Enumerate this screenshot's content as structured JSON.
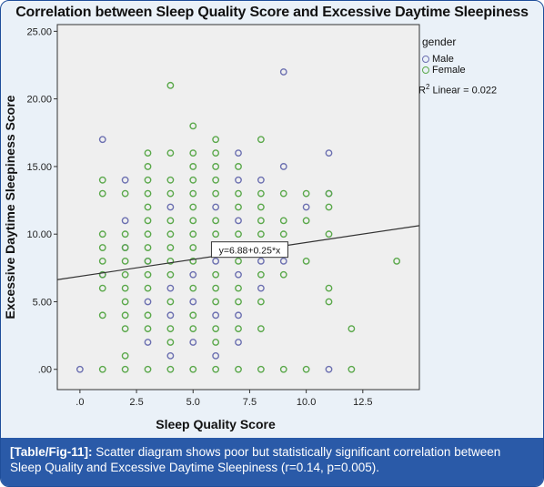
{
  "chart_data": {
    "type": "scatter",
    "title": "Correlation between Sleep Quality Score and Excessive Daytime Sleepiness",
    "xlabel": "Sleep Quality Score",
    "ylabel": "Excessive Daytime Sleepiness Score",
    "xlim": [
      -1,
      15
    ],
    "ylim": [
      -1.5,
      25.5
    ],
    "x_ticks": [
      0,
      2.5,
      5,
      7.5,
      10,
      12.5
    ],
    "x_tick_labels": [
      ".0",
      "2.5",
      "5.0",
      "7.5",
      "10.0",
      "12.5"
    ],
    "y_ticks": [
      0,
      5,
      10,
      15,
      20,
      25
    ],
    "y_tick_labels": [
      ".00",
      "5.00",
      "10.00",
      "15.00",
      "20.00",
      "25.00"
    ],
    "grid": false,
    "legend_position": "top-right",
    "legend_title": "gender",
    "series": [
      {
        "name": "Male",
        "color": "#6b6fb0",
        "points": [
          [
            0,
            0
          ],
          [
            1,
            17
          ],
          [
            1,
            7
          ],
          [
            2,
            14
          ],
          [
            2,
            11
          ],
          [
            2,
            9
          ],
          [
            3,
            2
          ],
          [
            3,
            5
          ],
          [
            3,
            8
          ],
          [
            4,
            1
          ],
          [
            4,
            4
          ],
          [
            4,
            6
          ],
          [
            4,
            12
          ],
          [
            5,
            5
          ],
          [
            5,
            2
          ],
          [
            5,
            7
          ],
          [
            6,
            1
          ],
          [
            6,
            4
          ],
          [
            6,
            8
          ],
          [
            6,
            12
          ],
          [
            7,
            16
          ],
          [
            7,
            14
          ],
          [
            7,
            11
          ],
          [
            7,
            4
          ],
          [
            7,
            2
          ],
          [
            7,
            7
          ],
          [
            8,
            14
          ],
          [
            8,
            6
          ],
          [
            8,
            8
          ],
          [
            9,
            22
          ],
          [
            9,
            15
          ],
          [
            9,
            8
          ],
          [
            10,
            12
          ],
          [
            11,
            16
          ],
          [
            11,
            13
          ],
          [
            11,
            0
          ]
        ]
      },
      {
        "name": "Female",
        "color": "#5aa84a",
        "points": [
          [
            1,
            0
          ],
          [
            1,
            4
          ],
          [
            1,
            6
          ],
          [
            1,
            7
          ],
          [
            1,
            8
          ],
          [
            1,
            9
          ],
          [
            1,
            10
          ],
          [
            1,
            13
          ],
          [
            1,
            14
          ],
          [
            2,
            0
          ],
          [
            2,
            1
          ],
          [
            2,
            3
          ],
          [
            2,
            4
          ],
          [
            2,
            5
          ],
          [
            2,
            6
          ],
          [
            2,
            7
          ],
          [
            2,
            8
          ],
          [
            2,
            9
          ],
          [
            2,
            10
          ],
          [
            2,
            13
          ],
          [
            3,
            0
          ],
          [
            3,
            3
          ],
          [
            3,
            4
          ],
          [
            3,
            6
          ],
          [
            3,
            7
          ],
          [
            3,
            8
          ],
          [
            3,
            9
          ],
          [
            3,
            10
          ],
          [
            3,
            11
          ],
          [
            3,
            12
          ],
          [
            3,
            13
          ],
          [
            3,
            14
          ],
          [
            3,
            15
          ],
          [
            3,
            16
          ],
          [
            4,
            0
          ],
          [
            4,
            2
          ],
          [
            4,
            3
          ],
          [
            4,
            5
          ],
          [
            4,
            7
          ],
          [
            4,
            8
          ],
          [
            4,
            9
          ],
          [
            4,
            10
          ],
          [
            4,
            11
          ],
          [
            4,
            13
          ],
          [
            4,
            14
          ],
          [
            4,
            16
          ],
          [
            4,
            21
          ],
          [
            5,
            0
          ],
          [
            5,
            3
          ],
          [
            5,
            4
          ],
          [
            5,
            6
          ],
          [
            5,
            8
          ],
          [
            5,
            9
          ],
          [
            5,
            10
          ],
          [
            5,
            11
          ],
          [
            5,
            12
          ],
          [
            5,
            13
          ],
          [
            5,
            14
          ],
          [
            5,
            15
          ],
          [
            5,
            16
          ],
          [
            5,
            18
          ],
          [
            6,
            0
          ],
          [
            6,
            2
          ],
          [
            6,
            3
          ],
          [
            6,
            5
          ],
          [
            6,
            6
          ],
          [
            6,
            7
          ],
          [
            6,
            9
          ],
          [
            6,
            10
          ],
          [
            6,
            11
          ],
          [
            6,
            13
          ],
          [
            6,
            14
          ],
          [
            6,
            15
          ],
          [
            6,
            16
          ],
          [
            6,
            17
          ],
          [
            7,
            0
          ],
          [
            7,
            3
          ],
          [
            7,
            5
          ],
          [
            7,
            6
          ],
          [
            7,
            8
          ],
          [
            7,
            9
          ],
          [
            7,
            10
          ],
          [
            7,
            12
          ],
          [
            7,
            13
          ],
          [
            7,
            15
          ],
          [
            8,
            0
          ],
          [
            8,
            3
          ],
          [
            8,
            5
          ],
          [
            8,
            7
          ],
          [
            8,
            9
          ],
          [
            8,
            10
          ],
          [
            8,
            11
          ],
          [
            8,
            12
          ],
          [
            8,
            13
          ],
          [
            8,
            17
          ],
          [
            9,
            0
          ],
          [
            9,
            7
          ],
          [
            9,
            10
          ],
          [
            9,
            11
          ],
          [
            9,
            13
          ],
          [
            10,
            0
          ],
          [
            10,
            8
          ],
          [
            10,
            11
          ],
          [
            10,
            13
          ],
          [
            11,
            5
          ],
          [
            11,
            6
          ],
          [
            11,
            10
          ],
          [
            11,
            12
          ],
          [
            11,
            13
          ],
          [
            12,
            0
          ],
          [
            12,
            3
          ],
          [
            14,
            8
          ]
        ]
      }
    ],
    "fit_line": {
      "intercept": 6.88,
      "slope": 0.25,
      "label": "y=6.88+0.25*x",
      "r2_label": "R",
      "r2_sup": "2",
      "r2_rest": " Linear = 0.022",
      "color": "#333333"
    }
  },
  "caption": {
    "tag": "[Table/Fig-11]:",
    "text": " Scatter diagram shows poor but statistically significant correlation between Sleep Quality and Excessive Daytime Sleepiness (r=0.14, p=0.005)."
  }
}
